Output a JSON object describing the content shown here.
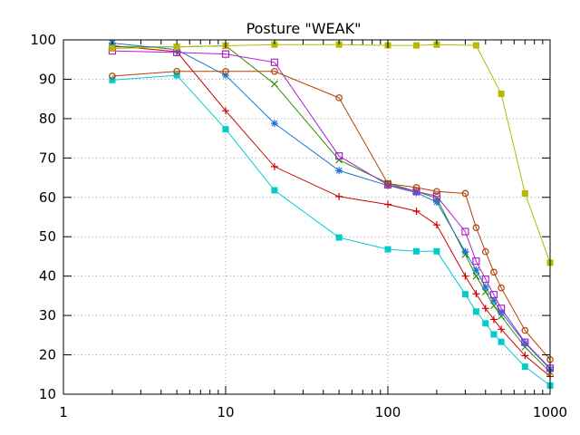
{
  "chart_data": {
    "type": "line",
    "title": "Posture \"WEAK\"",
    "xlabel": "",
    "ylabel": "",
    "xscale": "log",
    "xlim": [
      1,
      1000
    ],
    "ylim": [
      10,
      100
    ],
    "grid": true,
    "legend": "none",
    "xticks": [
      1,
      10,
      100,
      1000
    ],
    "xtick_labels": [
      "1",
      "10",
      "100",
      "1000"
    ],
    "yticks": [
      10,
      20,
      30,
      40,
      50,
      60,
      70,
      80,
      90,
      100
    ],
    "ytick_labels": [
      "10",
      "20",
      "30",
      "40",
      "50",
      "60",
      "70",
      "80",
      "90",
      "100"
    ],
    "series": [
      {
        "name": "series-1",
        "color": "#cc0000",
        "marker": "plus",
        "x": [
          2,
          5,
          10,
          20,
          50,
          100,
          150,
          200,
          300,
          350,
          400,
          450,
          500,
          700,
          1000
        ],
        "y": [
          98.5,
          97.0,
          82.0,
          67.8,
          60.2,
          58.2,
          56.5,
          53.0,
          40.0,
          35.5,
          31.8,
          29.0,
          26.5,
          19.8,
          14.5
        ]
      },
      {
        "name": "series-2",
        "color": "#2f8f00",
        "marker": "x",
        "x": [
          2,
          5,
          10,
          20,
          50,
          100,
          150,
          200,
          300,
          350,
          400,
          450,
          500,
          700,
          1000
        ],
        "y": [
          98.2,
          98.2,
          98.5,
          88.8,
          69.5,
          63.6,
          61.5,
          59.8,
          45.5,
          40.0,
          36.0,
          32.5,
          29.8,
          22.0,
          15.6
        ]
      },
      {
        "name": "series-3",
        "color": "#1a75d1",
        "marker": "star",
        "x": [
          2,
          5,
          10,
          20,
          50,
          100,
          150,
          200,
          300,
          350,
          400,
          450,
          500,
          700,
          1000
        ],
        "y": [
          99.2,
          97.5,
          91.0,
          78.8,
          66.8,
          63.0,
          61.2,
          58.8,
          46.2,
          41.5,
          37.2,
          33.8,
          30.8,
          23.0,
          16.4
        ]
      },
      {
        "name": "series-4",
        "color": "#aa22cc",
        "marker": "square-open",
        "x": [
          2,
          5,
          10,
          20,
          50,
          100,
          150,
          200,
          300,
          350,
          400,
          450,
          500,
          700,
          1000
        ],
        "y": [
          97.2,
          96.8,
          96.4,
          94.3,
          70.5,
          63.2,
          61.5,
          60.3,
          51.3,
          43.8,
          39.2,
          35.3,
          31.8,
          23.2,
          16.6
        ]
      },
      {
        "name": "series-5",
        "color": "#00cccc",
        "marker": "square-filled",
        "x": [
          2,
          5,
          10,
          20,
          50,
          100,
          150,
          200,
          300,
          350,
          400,
          450,
          500,
          700,
          1000
        ],
        "y": [
          89.8,
          91.0,
          77.3,
          61.8,
          49.8,
          46.8,
          46.3,
          46.3,
          35.4,
          31.0,
          28.0,
          25.2,
          23.3,
          17.0,
          12.2
        ]
      },
      {
        "name": "series-6",
        "color": "#b8b800",
        "marker": "square-filled",
        "x": [
          2,
          5,
          10,
          20,
          50,
          100,
          150,
          200,
          350,
          500,
          700,
          1000
        ],
        "y": [
          97.8,
          98.2,
          98.5,
          98.8,
          98.8,
          98.6,
          98.6,
          98.8,
          98.6,
          86.3,
          61.0,
          43.4
        ]
      },
      {
        "name": "series-7",
        "color": "#b04000",
        "marker": "circle-open",
        "x": [
          2,
          5,
          10,
          20,
          50,
          100,
          150,
          200,
          300,
          350,
          400,
          450,
          500,
          700,
          1000
        ],
        "y": [
          90.8,
          92.0,
          92.0,
          92.0,
          85.3,
          63.5,
          62.5,
          61.5,
          61.0,
          52.3,
          46.2,
          41.0,
          37.0,
          26.2,
          18.8
        ]
      }
    ]
  }
}
